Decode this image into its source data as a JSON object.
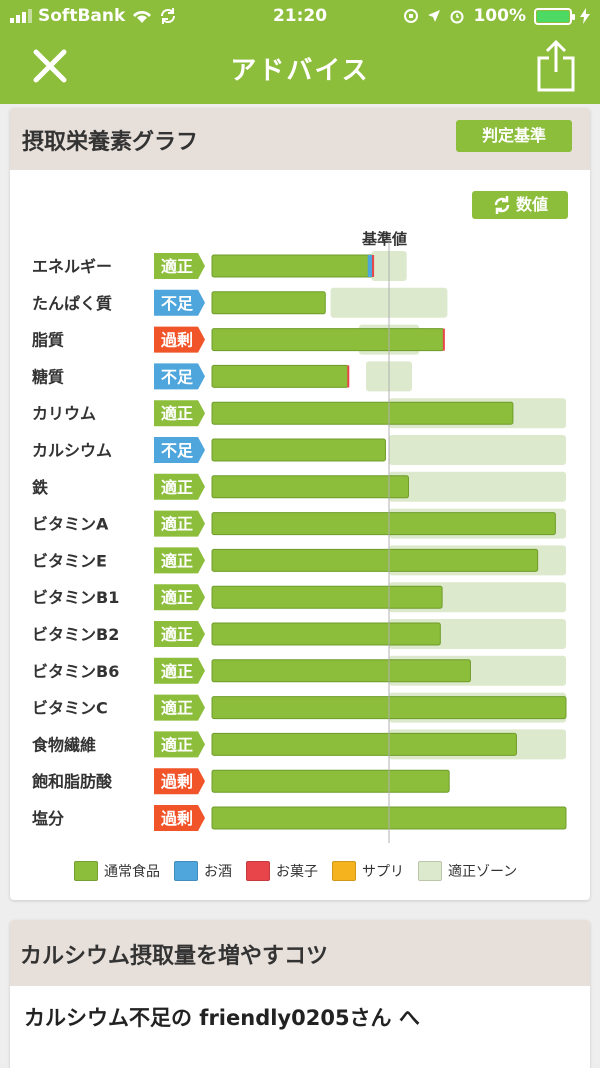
{
  "status_bar": {
    "carrier": "SoftBank",
    "time": "21:20",
    "battery": "100%"
  },
  "nav": {
    "title": "アドバイス",
    "close_icon": "close-icon",
    "share_icon": "share-icon"
  },
  "graph_card": {
    "title": "摂取栄養素グラフ",
    "criteria_button": "判定基準",
    "values_button": "数値",
    "reference_label": "基準値"
  },
  "colors": {
    "food": "#8cbd3b",
    "alcohol": "#4ea6dc",
    "snack": "#e8454a",
    "supplement": "#f5b41e",
    "zone": "#dde9cc",
    "badge_ok": "#8cbd3b",
    "badge_low": "#4ea6dc",
    "badge_high": "#f05428"
  },
  "chart_data": {
    "type": "bar",
    "reference_value": 1.0,
    "rows": [
      {
        "label": "エネルギー",
        "status": "適正",
        "status_type": "ok",
        "food": 0.91,
        "alcohol": 0.03,
        "snack": 0.01,
        "zone": [
          0.9,
          1.1
        ]
      },
      {
        "label": "たんぱく質",
        "status": "不足",
        "status_type": "low",
        "food": 0.64,
        "alcohol": 0,
        "snack": 0,
        "zone": [
          0.67,
          1.33
        ]
      },
      {
        "label": "脂質",
        "status": "過剰",
        "status_type": "high",
        "food": 1.31,
        "alcohol": 0,
        "snack": 0.01,
        "zone": [
          0.83,
          1.17
        ]
      },
      {
        "label": "糖質",
        "status": "不足",
        "status_type": "low",
        "food": 0.77,
        "alcohol": 0,
        "snack": 0.01,
        "zone": [
          0.87,
          1.13
        ]
      },
      {
        "label": "カリウム",
        "status": "適正",
        "status_type": "ok",
        "food": 1.7,
        "alcohol": 0,
        "snack": 0,
        "zone": [
          1.0,
          2.0
        ]
      },
      {
        "label": "カルシウム",
        "status": "不足",
        "status_type": "low",
        "food": 0.98,
        "alcohol": 0,
        "snack": 0,
        "zone": [
          1.0,
          2.0
        ]
      },
      {
        "label": "鉄",
        "status": "適正",
        "status_type": "ok",
        "food": 1.11,
        "alcohol": 0,
        "snack": 0,
        "zone": [
          1.0,
          2.0
        ]
      },
      {
        "label": "ビタミンA",
        "status": "適正",
        "status_type": "ok",
        "food": 1.94,
        "alcohol": 0,
        "snack": 0,
        "zone": [
          1.0,
          2.0
        ]
      },
      {
        "label": "ビタミンE",
        "status": "適正",
        "status_type": "ok",
        "food": 1.84,
        "alcohol": 0,
        "snack": 0,
        "zone": [
          1.0,
          2.0
        ]
      },
      {
        "label": "ビタミンB1",
        "status": "適正",
        "status_type": "ok",
        "food": 1.3,
        "alcohol": 0,
        "snack": 0,
        "zone": [
          1.0,
          2.0
        ]
      },
      {
        "label": "ビタミンB2",
        "status": "適正",
        "status_type": "ok",
        "food": 1.29,
        "alcohol": 0,
        "snack": 0,
        "zone": [
          1.0,
          2.0
        ]
      },
      {
        "label": "ビタミンB6",
        "status": "適正",
        "status_type": "ok",
        "food": 1.46,
        "alcohol": 0,
        "snack": 0,
        "zone": [
          1.0,
          2.0
        ]
      },
      {
        "label": "ビタミンC",
        "status": "適正",
        "status_type": "ok",
        "food": 2.0,
        "alcohol": 0,
        "snack": 0,
        "zone": [
          1.0,
          2.0
        ]
      },
      {
        "label": "食物繊維",
        "status": "適正",
        "status_type": "ok",
        "food": 1.72,
        "alcohol": 0,
        "snack": 0,
        "zone": [
          1.0,
          2.0
        ]
      },
      {
        "label": "飽和脂肪酸",
        "status": "過剰",
        "status_type": "high",
        "food": 1.34,
        "alcohol": 0,
        "snack": 0,
        "zone": null
      },
      {
        "label": "塩分",
        "status": "過剰",
        "status_type": "high",
        "food": 2.0,
        "alcohol": 0,
        "snack": 0,
        "zone": null
      }
    ],
    "legend": [
      {
        "name": "通常食品",
        "color": "#8cbd3b"
      },
      {
        "name": "お酒",
        "color": "#4ea6dc"
      },
      {
        "name": "お菓子",
        "color": "#e8454a"
      },
      {
        "name": "サプリ",
        "color": "#f5b41e"
      },
      {
        "name": "適正ゾーン",
        "color": "#dde9cc"
      }
    ]
  },
  "tips_card": {
    "title": "カルシウム摂取量を増やすコツ",
    "message": "カルシウム不足の friendly0205さん へ"
  }
}
